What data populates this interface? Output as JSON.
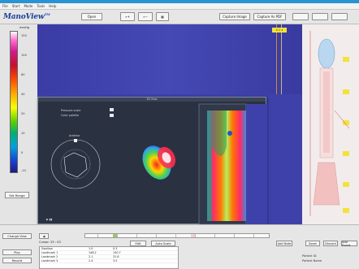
{
  "menu": [
    "File",
    "Start",
    "Mode",
    "Tools",
    "Help"
  ],
  "logo": {
    "text": "ManoView",
    "mark": "TM"
  },
  "toolbar": {
    "open": "Open",
    "capture_image": "Capture Image",
    "capture_as_pdf": "Capture As PDF"
  },
  "colorscale": {
    "unit": "mmHg",
    "ticks": [
      "150",
      "100",
      "60",
      "40",
      "20",
      "10",
      "0",
      "-10"
    ],
    "set_range": "Set Range"
  },
  "left_buttons": {
    "change_view": "Change View",
    "play": "Play",
    "record": "Record"
  },
  "topplot": {
    "marker": "0.1 s"
  },
  "overlay": {
    "title": "3D View",
    "labels": [
      "Pressure scale",
      "Color palette"
    ],
    "compass": "Anterior"
  },
  "bottom": {
    "cursor": "Cursor: 25 : 03",
    "buttons": [
      "Edit",
      "Auto Scale",
      "Add Note",
      "Zoom",
      "Discard",
      "Add Event"
    ],
    "table": [
      [
        "Swallow",
        "1.0",
        "0.3"
      ],
      [
        "Landmark 1",
        "148.2",
        "130.7"
      ],
      [
        "Landmark 2",
        "2.1",
        "31.8"
      ],
      [
        "Landmark 3",
        "2.4",
        "3.5"
      ]
    ],
    "status": [
      "Patient ID",
      "Patient Name"
    ]
  },
  "colors": {
    "plot_blue": "#3d3fa8",
    "accent_orange": "#e89a2e",
    "frame_blue": "#1f86c8"
  }
}
